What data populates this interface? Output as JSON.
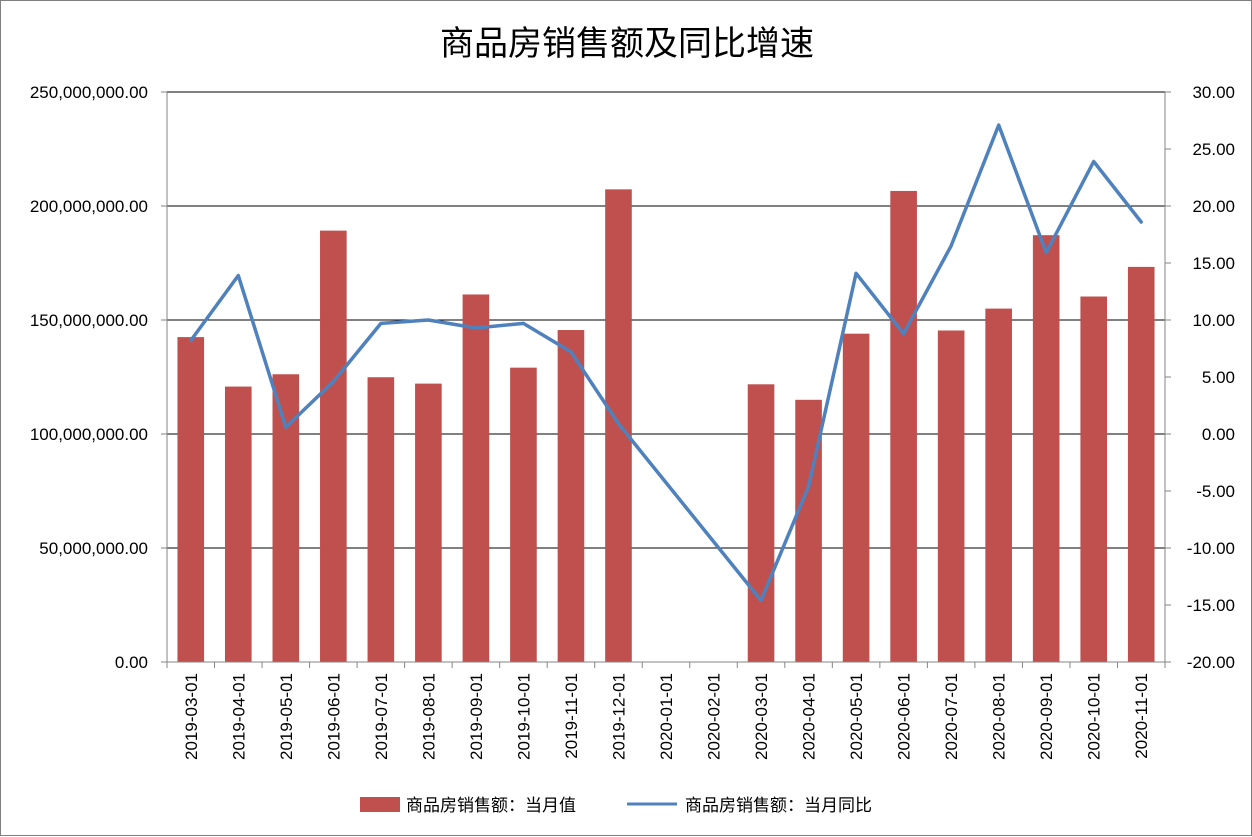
{
  "chart_data": {
    "type": "bar",
    "title": "商品房销售额及同比增速",
    "categories": [
      "2019-03-01",
      "2019-04-01",
      "2019-05-01",
      "2019-06-01",
      "2019-07-01",
      "2019-08-01",
      "2019-09-01",
      "2019-10-01",
      "2019-11-01",
      "2019-12-01",
      "2020-01-01",
      "2020-02-01",
      "2020-03-01",
      "2020-04-01",
      "2020-05-01",
      "2020-06-01",
      "2020-07-01",
      "2020-08-01",
      "2020-09-01",
      "2020-10-01",
      "2020-11-01"
    ],
    "series": [
      {
        "name": "商品房销售额：当月值",
        "type": "bar",
        "axis": "left",
        "color": "#c0504d",
        "values": [
          142500000,
          120800000,
          126200000,
          189200000,
          124900000,
          122100000,
          161200000,
          129100000,
          145600000,
          207300000,
          null,
          null,
          121800000,
          115000000,
          144000000,
          206600000,
          145400000,
          155000000,
          187200000,
          160300000,
          173300000
        ]
      },
      {
        "name": "商品房销售额：当月同比",
        "type": "line",
        "axis": "right",
        "color": "#4f81bd",
        "values": [
          8.2,
          13.9,
          0.6,
          4.6,
          9.7,
          10.0,
          9.3,
          9.7,
          7.2,
          0.9,
          null,
          null,
          -14.6,
          -4.6,
          14.1,
          8.8,
          16.5,
          27.1,
          15.9,
          23.9,
          18.6
        ]
      }
    ],
    "y_left": {
      "range": [
        0,
        250000000
      ],
      "ticks": [
        0,
        50000000,
        100000000,
        150000000,
        200000000,
        250000000
      ],
      "tick_labels": [
        "0.00",
        "50,000,000.00",
        "100,000,000.00",
        "150,000,000.00",
        "200,000,000.00",
        "250,000,000.00"
      ]
    },
    "y_right": {
      "range": [
        -20,
        30
      ],
      "ticks": [
        -20,
        -15,
        -10,
        -5,
        0,
        5,
        10,
        15,
        20,
        25,
        30
      ],
      "tick_labels": [
        "-20.00",
        "-15.00",
        "-10.00",
        "-5.00",
        "0.00",
        "5.00",
        "10.00",
        "15.00",
        "20.00",
        "25.00",
        "30.00"
      ]
    },
    "grid": true,
    "legend_position": "bottom",
    "xlabel": "",
    "ylabel": ""
  }
}
